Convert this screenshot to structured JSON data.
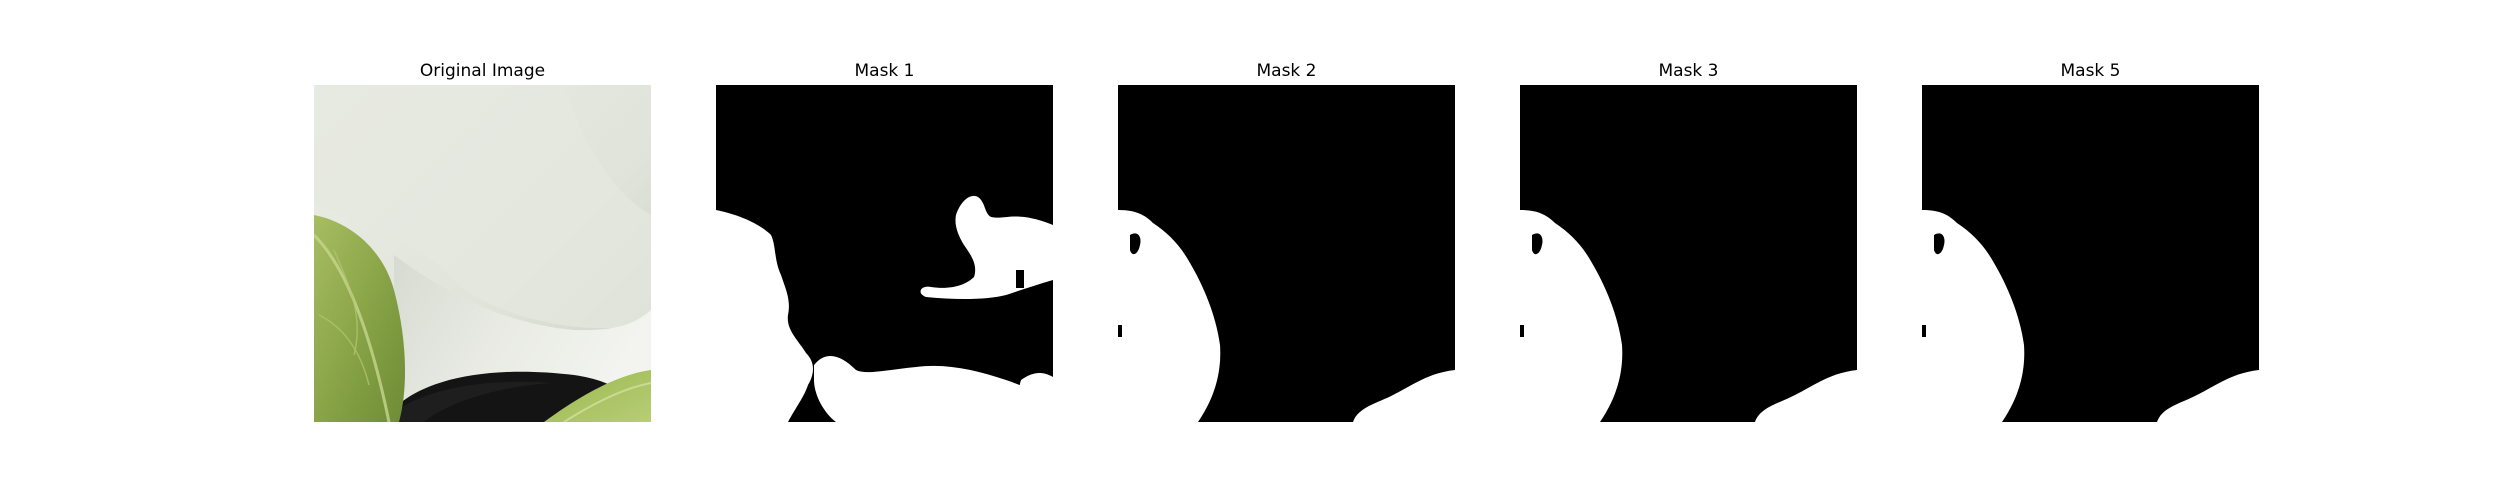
{
  "figure": {
    "panels": [
      {
        "title": "Original Image"
      },
      {
        "title": "Mask 1"
      },
      {
        "title": "Mask 2"
      },
      {
        "title": "Mask 3"
      },
      {
        "title": "Mask 5"
      }
    ]
  },
  "colors": {
    "mask_background": "#000000",
    "mask_foreground": "#ffffff",
    "leaf_green": "#8aa548",
    "pot_dark": "#151515",
    "petal_light": "#e4e7de"
  }
}
